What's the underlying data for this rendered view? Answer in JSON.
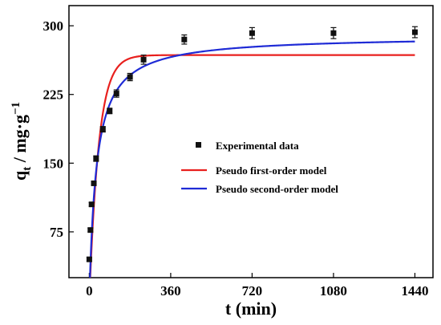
{
  "chart_data": {
    "type": "scatter",
    "xlabel": "t (min)",
    "ylabel_main": "q",
    "ylabel_sub": "t",
    "ylabel_unit": " / mg·g",
    "ylabel_sup": "−1",
    "xlim": [
      -90,
      1520
    ],
    "ylim": [
      25,
      322
    ],
    "x_ticks": [
      0,
      360,
      720,
      1080,
      1440
    ],
    "y_ticks": [
      75,
      150,
      225,
      300
    ],
    "x_tick_labels": [
      "0",
      "360",
      "720",
      "1080",
      "1440"
    ],
    "y_tick_labels": [
      "75",
      "150",
      "225",
      "300"
    ],
    "legend_position": "center-right",
    "colors": {
      "experimental": "#111111",
      "first_order": "#e8201e",
      "second_order": "#1f2bd6"
    },
    "series": [
      {
        "name": "Experimental data",
        "kind": "points",
        "x": [
          0,
          5,
          10,
          20,
          30,
          60,
          90,
          120,
          180,
          240,
          420,
          720,
          1080,
          1440
        ],
        "y": [
          45,
          77,
          105,
          128,
          155,
          187,
          207,
          226,
          244,
          263,
          285,
          292,
          292,
          293
        ],
        "err": [
          2,
          2,
          2,
          2,
          3,
          3,
          3,
          4,
          4,
          5,
          5,
          6,
          6,
          6
        ]
      },
      {
        "name": "Pseudo first-order model",
        "kind": "line",
        "qe": 268,
        "k": 0.024
      },
      {
        "name": "Pseudo second-order model",
        "kind": "line",
        "qe": 289,
        "k": 0.00011
      }
    ]
  }
}
